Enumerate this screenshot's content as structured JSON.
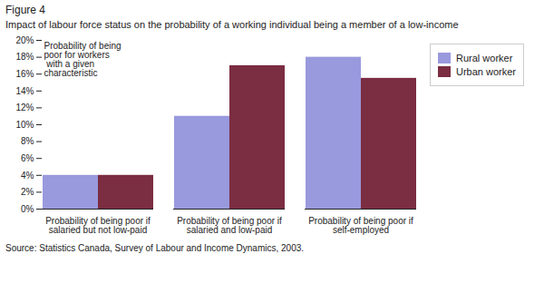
{
  "chart_data": {
    "type": "bar",
    "title": "Figure 4",
    "subtitle": "Impact of labour force status on the probability of a working individual being a member of a low-income",
    "caption": "Source: Statistics Canada, Survey of Labour and Income Dynamics, 2003.",
    "annotation": "Probability of being\npoor for workers\n with a given\ncharacteristic",
    "categories": [
      "Probability of being poor if\nsalaried but not low-paid",
      "Probability of being poor if\nsalaried and low-paid",
      "Probability of being poor if\nself-employed"
    ],
    "series": [
      {
        "name": "Rural worker",
        "color": "#9999DD",
        "values": [
          0.04,
          0.11,
          0.18
        ]
      },
      {
        "name": "Urban worker",
        "color": "#7B2D42",
        "values": [
          0.04,
          0.17,
          0.155
        ]
      }
    ],
    "ylim": [
      0,
      0.2
    ],
    "yticks": [
      {
        "value": 0.0,
        "label": "0%"
      },
      {
        "value": 0.02,
        "label": "2%"
      },
      {
        "value": 0.04,
        "label": "4%"
      },
      {
        "value": 0.06,
        "label": "6%"
      },
      {
        "value": 0.08,
        "label": "8%"
      },
      {
        "value": 0.1,
        "label": "10%"
      },
      {
        "value": 0.12,
        "label": "12%"
      },
      {
        "value": 0.14,
        "label": "14%"
      },
      {
        "value": 0.16,
        "label": "16%"
      },
      {
        "value": 0.18,
        "label": "18%"
      },
      {
        "value": 0.2,
        "label": "20%"
      }
    ],
    "grid": false,
    "legend": "right"
  }
}
